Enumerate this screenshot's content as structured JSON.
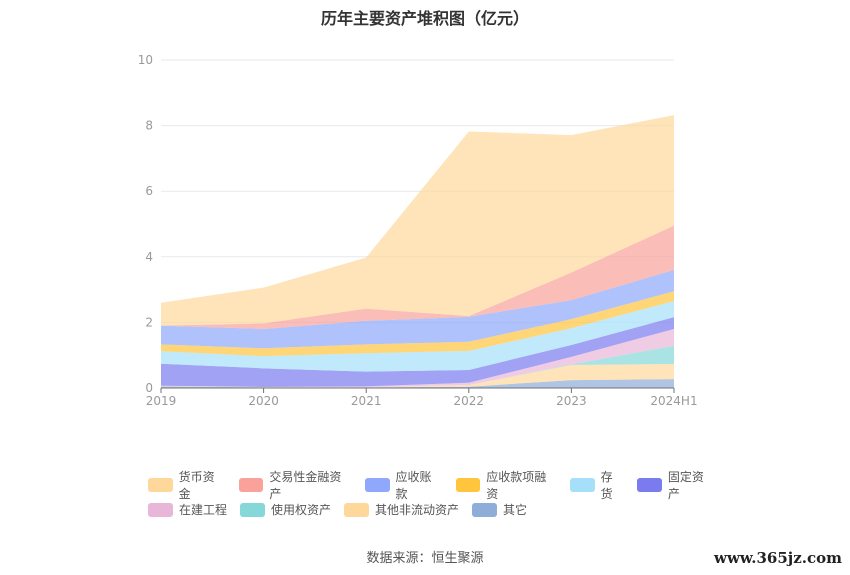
{
  "chart_data": {
    "type": "area",
    "stacked": true,
    "title": "历年主要资产堆积图（亿元）",
    "xlabel": "",
    "ylabel": "",
    "categories": [
      "2019",
      "2020",
      "2021",
      "2022",
      "2023",
      "2024H1"
    ],
    "ylim": [
      0,
      10
    ],
    "yticks": [
      0,
      2,
      4,
      6,
      8,
      10
    ],
    "grid": true,
    "legend_position": "bottom",
    "series": [
      {
        "name": "货币资金",
        "color": "#fdd89a",
        "values": [
          0.7,
          1.09,
          1.56,
          5.63,
          4.19,
          3.37
        ]
      },
      {
        "name": "交易性金融资产",
        "color": "#f9a19a",
        "values": [
          0.0,
          0.17,
          0.37,
          0.02,
          0.84,
          1.35
        ]
      },
      {
        "name": "应收账款",
        "color": "#8fa8fb",
        "values": [
          0.57,
          0.59,
          0.72,
          0.76,
          0.58,
          0.65
        ]
      },
      {
        "name": "应收款项融资",
        "color": "#ffc53d",
        "values": [
          0.21,
          0.24,
          0.27,
          0.28,
          0.28,
          0.3
        ]
      },
      {
        "name": "存货",
        "color": "#a5dff9",
        "values": [
          0.38,
          0.37,
          0.56,
          0.58,
          0.51,
          0.49
        ]
      },
      {
        "name": "固定资产",
        "color": "#7b7bf0",
        "values": [
          0.67,
          0.57,
          0.45,
          0.39,
          0.36,
          0.36
        ]
      },
      {
        "name": "在建工程",
        "color": "#e8b6d8",
        "values": [
          0.0,
          0.0,
          0.03,
          0.07,
          0.23,
          0.51
        ]
      },
      {
        "name": "使用权资产",
        "color": "#86d7d8",
        "values": [
          0.0,
          0.0,
          0.0,
          0.0,
          0.02,
          0.56
        ]
      },
      {
        "name": "其他非流动资产",
        "color": "#fdd89a",
        "values": [
          0.02,
          0.01,
          0.0,
          0.05,
          0.46,
          0.46
        ]
      },
      {
        "name": "其它",
        "color": "#8eadd8",
        "values": [
          0.05,
          0.02,
          0.02,
          0.04,
          0.24,
          0.27
        ]
      }
    ]
  },
  "source": "数据来源：恒生聚源",
  "watermark": "www.365jz.com"
}
